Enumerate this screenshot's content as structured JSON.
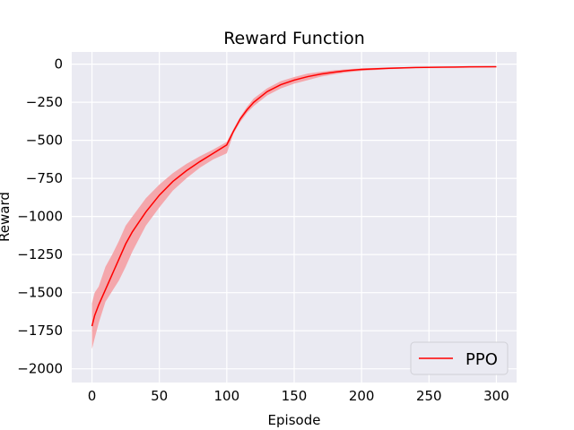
{
  "chart_data": {
    "type": "line",
    "title": "Reward Function",
    "xlabel": "Episode",
    "ylabel": "Reward",
    "xlim": [
      -15,
      315
    ],
    "ylim": [
      -2090,
      80
    ],
    "xticks": [
      0,
      50,
      100,
      150,
      200,
      250,
      300
    ],
    "yticks": [
      0,
      -250,
      -500,
      -750,
      -1000,
      -1250,
      -1500,
      -1750,
      -2000
    ],
    "ytick_labels": [
      "0",
      "−250",
      "−500",
      "−750",
      "−1000",
      "−1250",
      "−1500",
      "−1750",
      "−2000"
    ],
    "xtick_labels": [
      "0",
      "50",
      "100",
      "150",
      "200",
      "250",
      "300"
    ],
    "grid": true,
    "legend_position": "lower-right",
    "background_color": "#eaeaf2",
    "series": [
      {
        "name": "PPO",
        "color": "#ff0000",
        "band_color": "#f4a3a8",
        "x": [
          0,
          2,
          5,
          10,
          15,
          20,
          25,
          30,
          40,
          50,
          60,
          70,
          80,
          90,
          100,
          105,
          110,
          115,
          120,
          130,
          140,
          150,
          160,
          170,
          180,
          190,
          200,
          220,
          240,
          260,
          280,
          300
        ],
        "y": [
          -1720,
          -1650,
          -1580,
          -1480,
          -1380,
          -1280,
          -1180,
          -1100,
          -970,
          -860,
          -770,
          -700,
          -640,
          -585,
          -530,
          -440,
          -360,
          -300,
          -250,
          -180,
          -135,
          -105,
          -82,
          -65,
          -52,
          -42,
          -35,
          -27,
          -22,
          -20,
          -18,
          -17
        ],
        "lower": [
          -1870,
          -1800,
          -1700,
          -1560,
          -1490,
          -1420,
          -1330,
          -1230,
          -1060,
          -940,
          -830,
          -750,
          -680,
          -625,
          -585,
          -455,
          -380,
          -320,
          -275,
          -205,
          -160,
          -128,
          -105,
          -82,
          -66,
          -53,
          -44,
          -33,
          -26,
          -23,
          -20,
          -18
        ],
        "upper": [
          -1570,
          -1500,
          -1460,
          -1330,
          -1250,
          -1160,
          -1060,
          -1000,
          -880,
          -790,
          -715,
          -655,
          -605,
          -560,
          -510,
          -425,
          -345,
          -280,
          -225,
          -158,
          -112,
          -85,
          -62,
          -50,
          -40,
          -33,
          -27,
          -22,
          -19,
          -17,
          -16,
          -16
        ]
      }
    ]
  }
}
